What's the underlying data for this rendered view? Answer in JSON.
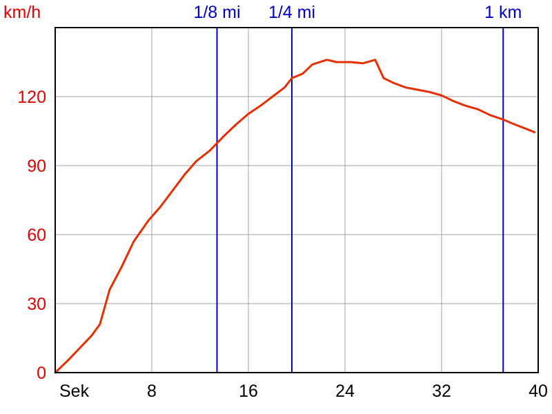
{
  "chart_data": {
    "type": "line",
    "ylabel": "km/h",
    "xlabel": "Sek",
    "xlim": [
      0,
      40
    ],
    "ylim": [
      0,
      150
    ],
    "x_ticks": [
      8,
      16,
      24,
      32,
      40
    ],
    "y_ticks": [
      0,
      30,
      60,
      90,
      120
    ],
    "grid": true,
    "colors": {
      "series": "#e62e00",
      "markers": "#0000cc",
      "ytext": "#e60000",
      "grid": "#a0a0a0"
    },
    "markers": [
      {
        "label": "1/8 mi",
        "x": 13.4
      },
      {
        "label": "1/4 mi",
        "x": 19.6
      },
      {
        "label": "1 km",
        "x": 37.1
      }
    ],
    "series": [
      {
        "x": [
          0,
          1,
          2,
          3,
          3.7,
          4.5,
          5.5,
          6.5,
          7.7,
          8.7,
          9.7,
          10.7,
          11.7,
          12.8,
          14,
          15,
          16,
          17,
          18,
          19,
          19.6,
          20.5,
          21.3,
          22.5,
          23.3,
          24.5,
          25.5,
          26.5,
          27.2,
          28,
          29,
          30,
          31,
          32,
          33,
          34,
          35,
          36,
          37.1,
          38,
          39,
          39.7
        ],
        "values": [
          0,
          5,
          10.5,
          16,
          21,
          36,
          46,
          57,
          66,
          72,
          79,
          86,
          92,
          96.5,
          103,
          108,
          112.5,
          116,
          120,
          124,
          128,
          130,
          134,
          136,
          135,
          135,
          134.5,
          136,
          128,
          126,
          124,
          123,
          122,
          120.5,
          118,
          116,
          114.5,
          112,
          110,
          108,
          106,
          104.5
        ]
      }
    ]
  }
}
